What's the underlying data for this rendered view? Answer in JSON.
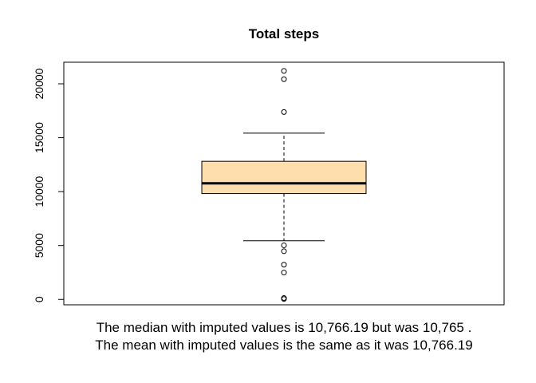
{
  "chart_data": {
    "type": "boxplot",
    "title": "Total steps",
    "xlabel": "",
    "ylabel": "",
    "ylim": [
      -500,
      22000
    ],
    "y_ticks": [
      0,
      5000,
      10000,
      15000,
      20000
    ],
    "y_tick_labels": [
      "0",
      "5000",
      "10000",
      "15000",
      "20000"
    ],
    "box": {
      "whisker_low": 5441,
      "q1": 9819,
      "median": 10766.19,
      "q3": 12811,
      "whisker_high": 15420,
      "fill_color": "#FFDEAD",
      "outliers": [
        41,
        126,
        2492,
        3219,
        4472,
        5018,
        17382,
        20427,
        21194
      ]
    },
    "caption_lines": [
      "The median with imputed values is 10,766.19 but was 10,765 .",
      "The mean with imputed values is the same as it was 10,766.19"
    ]
  }
}
